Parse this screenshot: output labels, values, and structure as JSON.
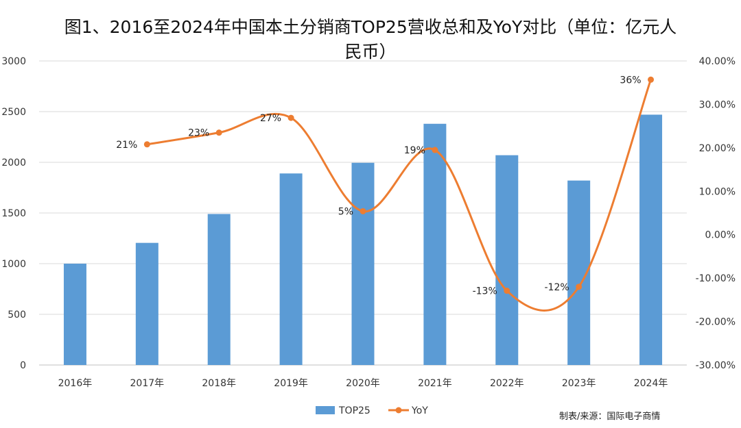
{
  "chart_data": {
    "type": "bar",
    "title_lines": [
      "图1、2016至2024年中国本土分销商TOP25营收总和及YoY对比（单位：亿元人",
      "民币）"
    ],
    "categories": [
      "2016年",
      "2017年",
      "2018年",
      "2019年",
      "2020年",
      "2021年",
      "2022年",
      "2023年",
      "2024年"
    ],
    "series": [
      {
        "name": "TOP25",
        "kind": "bar",
        "axis": "left",
        "color": "#5b9bd5",
        "values": [
          1000,
          1205,
          1490,
          1890,
          1995,
          2380,
          2070,
          1820,
          2470
        ]
      },
      {
        "name": "YoY",
        "kind": "line",
        "axis": "right",
        "color": "#ed7d31",
        "values": [
          null,
          20.8,
          23.5,
          26.9,
          5.4,
          19.5,
          -12.9,
          -12.0,
          35.7
        ],
        "data_labels": [
          "",
          "21%",
          "23%",
          "27%",
          "5%",
          "19%",
          "-13%",
          "-12%",
          "36%"
        ]
      }
    ],
    "left_axis": {
      "min": 0,
      "max": 3000,
      "ticks": [
        "0",
        "500",
        "1000",
        "1500",
        "2000",
        "2500",
        "3000"
      ]
    },
    "right_axis": {
      "min": -30,
      "max": 40,
      "ticks": [
        "-30.00%",
        "-20.00%",
        "-10.00%",
        "0.00%",
        "10.00%",
        "20.00%",
        "30.00%",
        "40.00%"
      ]
    },
    "grid": true,
    "legend_position": "bottom-center",
    "source_text": "制表/来源：国际电子商情"
  }
}
